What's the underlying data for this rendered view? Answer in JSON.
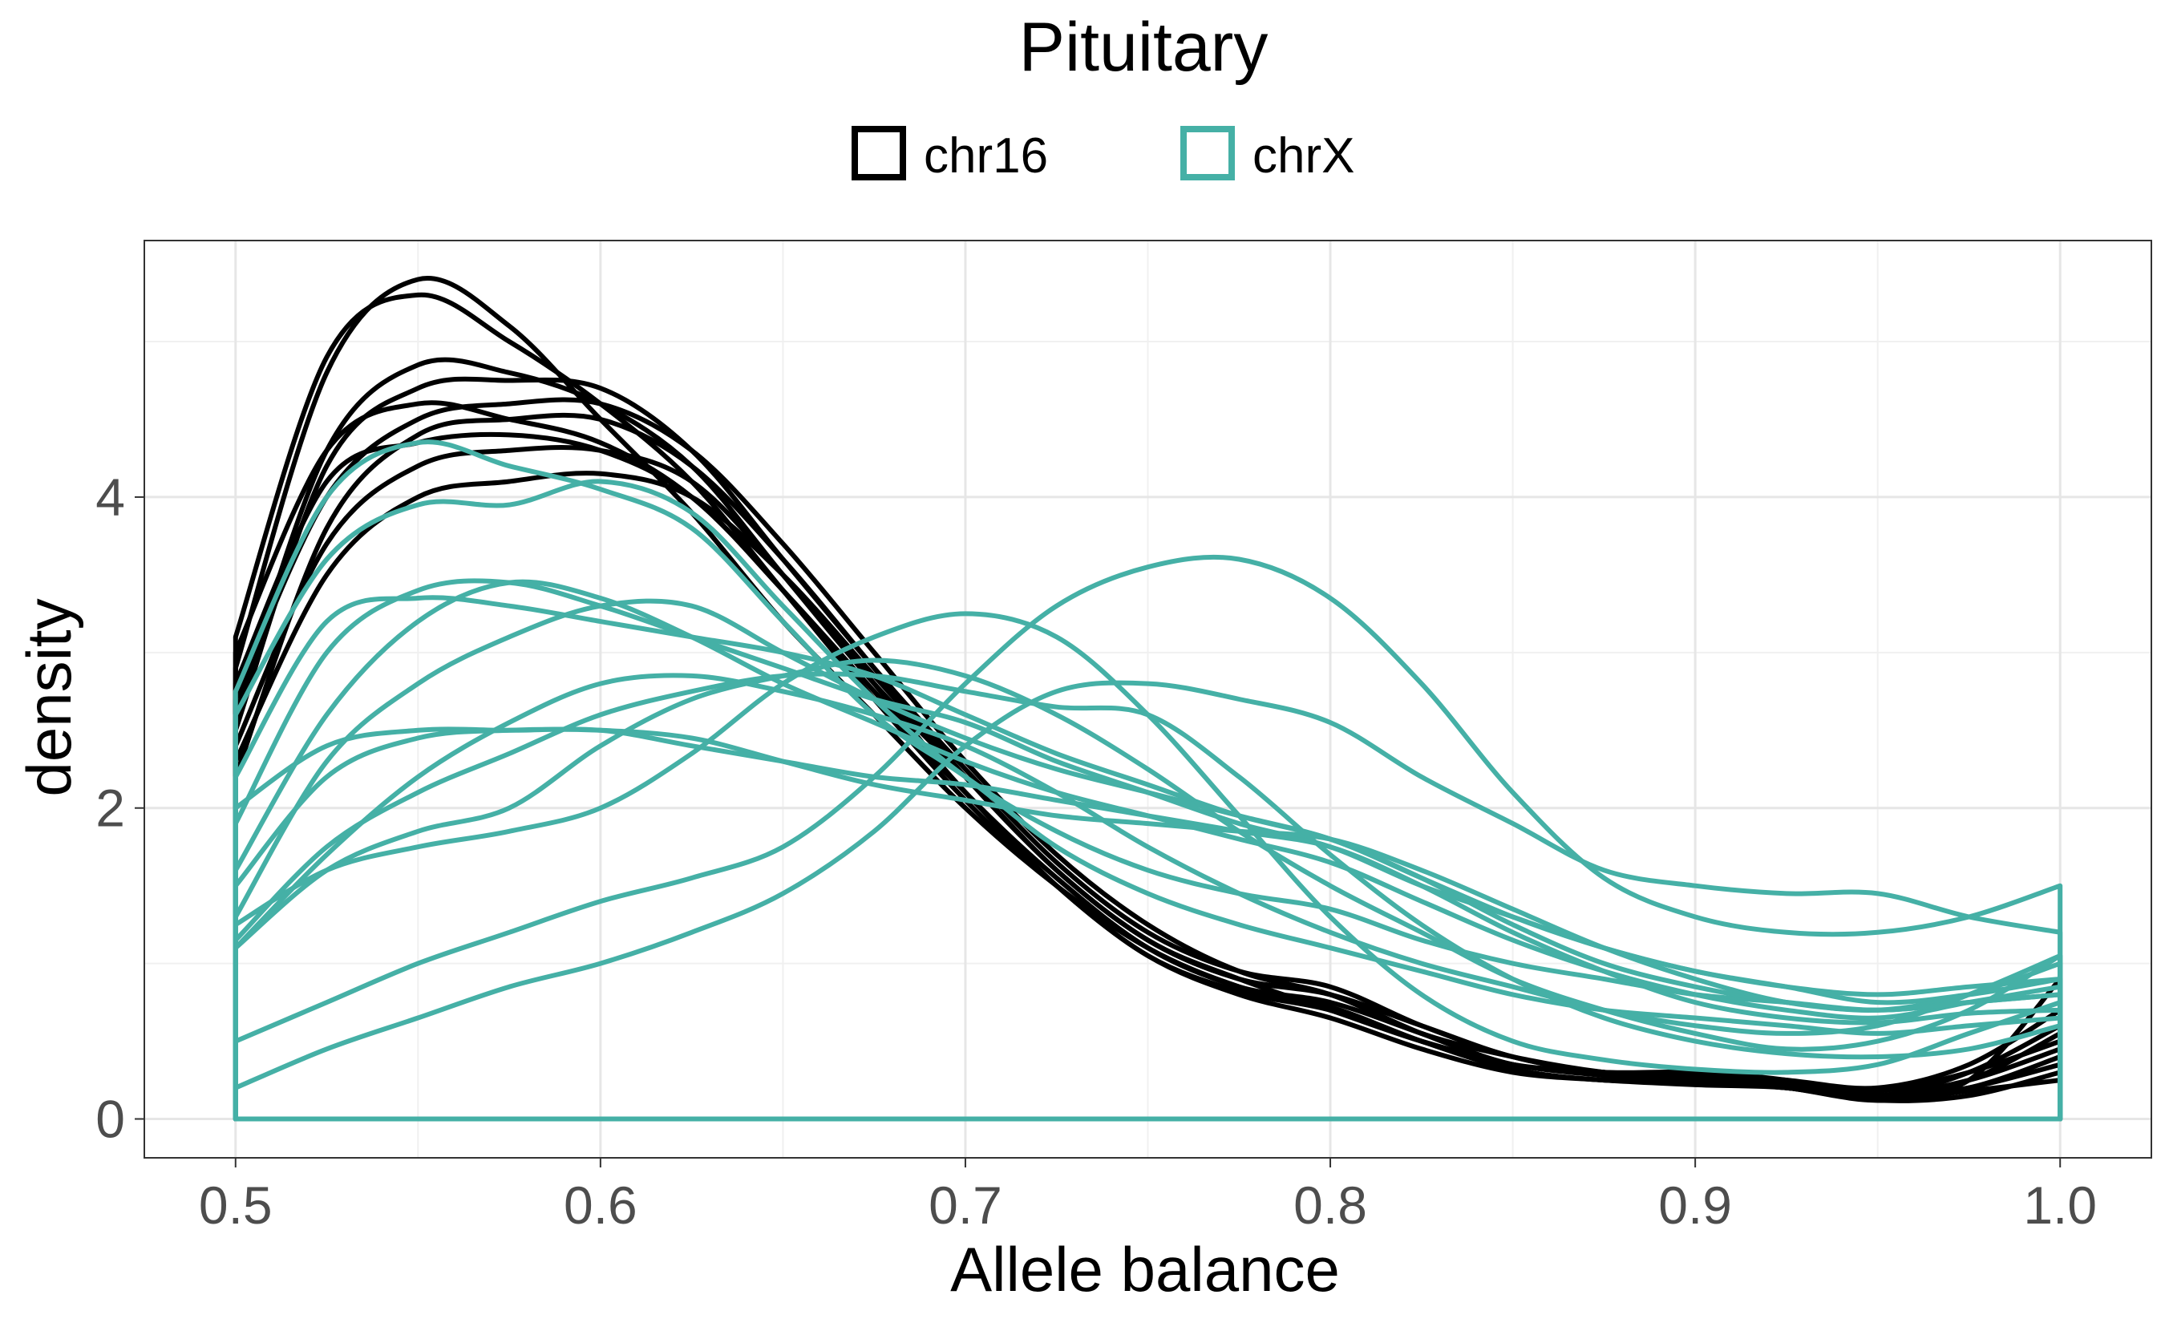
{
  "chart_data": {
    "type": "line",
    "title": "Pituitary",
    "xlabel": "Allele balance",
    "ylabel": "density",
    "xlim": [
      0.475,
      1.025
    ],
    "ylim": [
      -0.25,
      5.65
    ],
    "x_ticks": [
      0.5,
      0.6,
      0.7,
      0.8,
      0.9,
      1.0
    ],
    "x_tick_labels": [
      "0.5",
      "0.6",
      "0.7",
      "0.8",
      "0.9",
      "1.0"
    ],
    "y_ticks": [
      0,
      2,
      4
    ],
    "y_tick_labels": [
      "0",
      "2",
      "4"
    ],
    "grid": true,
    "legend_position": "top",
    "legend": [
      {
        "label": "chr16",
        "color": "#000000"
      },
      {
        "label": "chrX",
        "color": "#45b0a6"
      }
    ],
    "x": [
      0.5,
      0.525,
      0.55,
      0.575,
      0.6,
      0.625,
      0.65,
      0.675,
      0.7,
      0.725,
      0.75,
      0.775,
      0.8,
      0.825,
      0.85,
      0.875,
      0.9,
      0.925,
      0.95,
      0.975,
      1.0
    ],
    "series": [
      {
        "group": "chr16",
        "values": [
          3.1,
          4.9,
          5.3,
          5.0,
          4.6,
          4.1,
          3.4,
          2.7,
          2.1,
          1.5,
          1.05,
          0.8,
          0.65,
          0.45,
          0.3,
          0.25,
          0.22,
          0.2,
          0.12,
          0.15,
          0.3
        ]
      },
      {
        "group": "chr16",
        "values": [
          2.9,
          4.8,
          5.4,
          5.1,
          4.5,
          3.9,
          3.2,
          2.6,
          2.0,
          1.5,
          1.1,
          0.85,
          0.7,
          0.5,
          0.35,
          0.3,
          0.25,
          0.22,
          0.15,
          0.2,
          0.4
        ]
      },
      {
        "group": "chr16",
        "values": [
          2.6,
          4.3,
          4.85,
          4.8,
          4.6,
          4.2,
          3.5,
          2.8,
          2.2,
          1.6,
          1.15,
          0.9,
          0.8,
          0.6,
          0.4,
          0.3,
          0.3,
          0.25,
          0.15,
          0.25,
          0.55
        ]
      },
      {
        "group": "chr16",
        "values": [
          2.5,
          4.2,
          4.7,
          4.75,
          4.7,
          4.3,
          3.6,
          2.9,
          2.25,
          1.65,
          1.2,
          0.95,
          0.85,
          0.6,
          0.4,
          0.3,
          0.28,
          0.22,
          0.15,
          0.3,
          0.6
        ]
      },
      {
        "group": "chr16",
        "values": [
          2.7,
          4.0,
          4.5,
          4.6,
          4.6,
          4.3,
          3.7,
          3.0,
          2.3,
          1.7,
          1.25,
          0.95,
          0.8,
          0.55,
          0.35,
          0.3,
          0.3,
          0.25,
          0.2,
          0.35,
          0.7
        ]
      },
      {
        "group": "chr16",
        "values": [
          2.2,
          3.8,
          4.4,
          4.5,
          4.5,
          4.2,
          3.6,
          2.9,
          2.2,
          1.6,
          1.15,
          0.9,
          0.8,
          0.55,
          0.4,
          0.3,
          0.25,
          0.2,
          0.15,
          0.25,
          0.9
        ]
      },
      {
        "group": "chr16",
        "values": [
          2.4,
          3.7,
          4.2,
          4.3,
          4.3,
          4.1,
          3.5,
          2.8,
          2.1,
          1.55,
          1.1,
          0.85,
          0.75,
          0.55,
          0.35,
          0.3,
          0.28,
          0.22,
          0.18,
          0.3,
          0.5
        ]
      },
      {
        "group": "chr16",
        "values": [
          2.3,
          3.5,
          4.0,
          4.1,
          4.15,
          4.0,
          3.5,
          2.85,
          2.2,
          1.6,
          1.15,
          0.9,
          0.7,
          0.5,
          0.35,
          0.28,
          0.25,
          0.2,
          0.15,
          0.25,
          0.45
        ]
      },
      {
        "group": "chr16",
        "values": [
          2.8,
          4.1,
          4.35,
          4.4,
          4.3,
          4.0,
          3.4,
          2.75,
          2.1,
          1.55,
          1.1,
          0.85,
          0.72,
          0.5,
          0.32,
          0.25,
          0.25,
          0.2,
          0.12,
          0.2,
          0.35
        ]
      },
      {
        "group": "chr16",
        "values": [
          3.0,
          4.3,
          4.6,
          4.5,
          4.35,
          4.0,
          3.4,
          2.7,
          2.05,
          1.5,
          1.05,
          0.82,
          0.7,
          0.5,
          0.32,
          0.25,
          0.24,
          0.2,
          0.12,
          0.18,
          0.25
        ]
      },
      {
        "group": "chrX",
        "values": [
          2.75,
          4.0,
          4.35,
          4.2,
          4.05,
          3.8,
          3.2,
          2.6,
          2.2,
          1.75,
          1.45,
          1.25,
          1.1,
          0.95,
          0.8,
          0.7,
          0.65,
          0.6,
          0.55,
          0.6,
          0.65
        ]
      },
      {
        "group": "chrX",
        "values": [
          2.6,
          3.6,
          3.95,
          3.95,
          4.1,
          3.9,
          3.3,
          2.7,
          2.2,
          1.85,
          1.6,
          1.45,
          1.35,
          1.15,
          1.0,
          0.9,
          0.8,
          0.75,
          0.7,
          0.75,
          0.8
        ]
      },
      {
        "group": "chrX",
        "values": [
          1.9,
          3.0,
          3.4,
          3.45,
          3.3,
          3.1,
          2.9,
          2.7,
          2.55,
          2.3,
          2.1,
          1.9,
          1.75,
          1.5,
          1.3,
          1.1,
          0.95,
          0.85,
          0.8,
          0.85,
          0.9
        ]
      },
      {
        "group": "chrX",
        "values": [
          1.6,
          2.6,
          3.2,
          3.45,
          3.35,
          3.1,
          2.8,
          2.55,
          2.3,
          2.1,
          1.95,
          1.8,
          1.65,
          1.4,
          1.15,
          0.95,
          0.8,
          0.7,
          0.65,
          0.75,
          0.85
        ]
      },
      {
        "group": "chrX",
        "values": [
          2.2,
          3.2,
          3.35,
          3.3,
          3.2,
          3.1,
          3.0,
          2.85,
          2.6,
          2.35,
          2.15,
          1.95,
          1.8,
          1.55,
          1.3,
          1.1,
          0.95,
          0.85,
          0.75,
          0.8,
          0.9
        ]
      },
      {
        "group": "chrX",
        "values": [
          1.3,
          2.3,
          2.8,
          3.1,
          3.3,
          3.3,
          3.0,
          2.7,
          2.45,
          2.25,
          2.1,
          1.95,
          1.8,
          1.55,
          1.25,
          1.0,
          0.85,
          0.75,
          0.7,
          0.8,
          1.0
        ]
      },
      {
        "group": "chrX",
        "values": [
          1.1,
          1.7,
          2.2,
          2.55,
          2.8,
          2.85,
          2.75,
          2.6,
          2.4,
          2.1,
          1.75,
          1.45,
          1.2,
          1.0,
          0.85,
          0.7,
          0.6,
          0.55,
          0.6,
          0.8,
          1.05
        ]
      },
      {
        "group": "chrX",
        "values": [
          1.5,
          2.2,
          2.45,
          2.5,
          2.5,
          2.45,
          2.3,
          2.15,
          2.05,
          1.95,
          1.9,
          1.85,
          1.8,
          1.6,
          1.35,
          1.1,
          0.9,
          0.75,
          0.7,
          0.75,
          0.8
        ]
      },
      {
        "group": "chrX",
        "values": [
          1.1,
          1.6,
          1.85,
          2.0,
          2.4,
          2.7,
          2.85,
          2.95,
          2.85,
          2.6,
          2.25,
          1.85,
          1.5,
          1.2,
          0.9,
          0.7,
          0.55,
          0.45,
          0.5,
          0.7,
          1.05
        ]
      },
      {
        "group": "chrX",
        "values": [
          1.25,
          1.6,
          1.75,
          1.85,
          2.0,
          2.35,
          2.8,
          3.1,
          3.25,
          3.1,
          2.6,
          1.95,
          1.3,
          0.8,
          0.5,
          0.38,
          0.32,
          0.3,
          0.35,
          0.55,
          0.75
        ]
      },
      {
        "group": "chrX",
        "values": [
          1.15,
          1.75,
          2.1,
          2.35,
          2.6,
          2.75,
          2.85,
          2.85,
          2.75,
          2.65,
          2.6,
          2.2,
          1.7,
          1.25,
          0.9,
          0.65,
          0.5,
          0.42,
          0.4,
          0.45,
          0.6
        ]
      },
      {
        "group": "chrX",
        "values": [
          2.0,
          2.4,
          2.5,
          2.5,
          2.5,
          2.4,
          2.3,
          2.2,
          2.15,
          2.05,
          1.95,
          1.85,
          1.75,
          1.5,
          1.2,
          0.95,
          0.75,
          0.65,
          0.62,
          0.68,
          0.7
        ]
      },
      {
        "group": "chrX",
        "values": [
          0.5,
          0.75,
          1.0,
          1.2,
          1.4,
          1.55,
          1.75,
          2.2,
          2.8,
          3.3,
          3.55,
          3.6,
          3.35,
          2.8,
          2.1,
          1.55,
          1.3,
          1.2,
          1.2,
          1.3,
          1.5
        ]
      },
      {
        "group": "chrX",
        "values": [
          0.2,
          0.45,
          0.65,
          0.85,
          1.0,
          1.2,
          1.45,
          1.85,
          2.4,
          2.75,
          2.8,
          2.7,
          2.55,
          2.2,
          1.9,
          1.6,
          1.5,
          1.45,
          1.45,
          1.3,
          1.2
        ]
      }
    ]
  }
}
